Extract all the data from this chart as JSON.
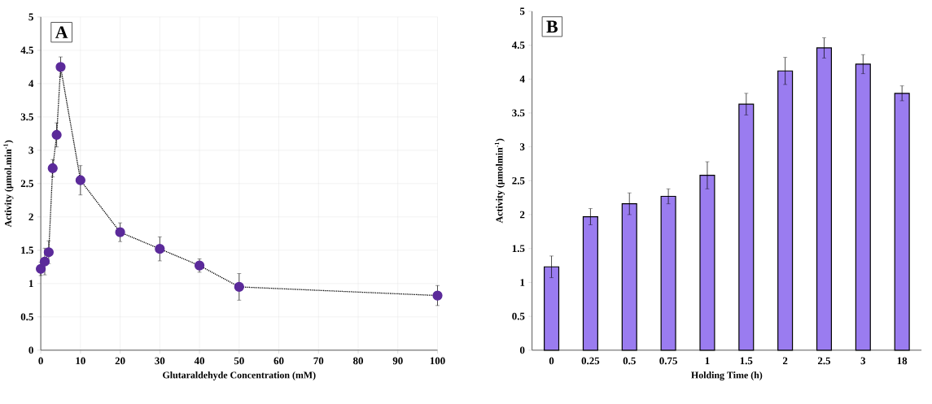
{
  "chart_data": [
    {
      "type": "line",
      "xlabel": "Glutaraldehyde Concentration (mM)",
      "ylabel": "Activity (µmol.min$^{-1}$)",
      "annotations": [
        "A"
      ],
      "x": [
        0,
        1,
        2,
        3,
        4,
        5,
        10,
        20,
        30,
        40,
        50,
        100
      ],
      "series": [
        {
          "color": "#5b2a9a",
          "values": [
            1.22,
            1.33,
            1.47,
            2.73,
            3.23,
            4.25,
            2.55,
            1.77,
            1.52,
            1.27,
            0.95,
            0.82
          ],
          "errors": [
            0.1,
            0.2,
            0.17,
            0.13,
            0.18,
            0.15,
            0.22,
            0.14,
            0.18,
            0.1,
            0.2,
            0.15
          ]
        }
      ],
      "xlim": [
        0,
        100
      ],
      "xticks": [
        0,
        10,
        20,
        30,
        40,
        50,
        60,
        70,
        80,
        90,
        100
      ],
      "ylim": [
        0,
        5
      ],
      "yticks": [
        0,
        0.5,
        1,
        1.5,
        2,
        2.5,
        3,
        3.5,
        4,
        4.5,
        5
      ],
      "grid": true,
      "marker": "circle",
      "line_style": "dotted"
    },
    {
      "type": "bar",
      "xlabel": "Holding Time (h)",
      "ylabel": "Activity (µmolmin$^{-1}$)",
      "annotations": [
        "B"
      ],
      "categories": [
        "0",
        "0.25",
        "0.5",
        "0.75",
        "1",
        "1.5",
        "2",
        "2.5",
        "3",
        "18"
      ],
      "series": [
        {
          "color": "#9a7cf0",
          "values": [
            1.23,
            1.97,
            2.16,
            2.27,
            2.58,
            3.63,
            4.12,
            4.46,
            4.22,
            3.79
          ],
          "errors": [
            0.16,
            0.12,
            0.16,
            0.11,
            0.2,
            0.16,
            0.2,
            0.15,
            0.14,
            0.11
          ]
        }
      ],
      "ylim": [
        0,
        5
      ],
      "yticks": [
        0,
        0.5,
        1,
        1.5,
        2,
        2.5,
        3,
        3.5,
        4,
        4.5,
        5
      ],
      "grid": false
    }
  ]
}
